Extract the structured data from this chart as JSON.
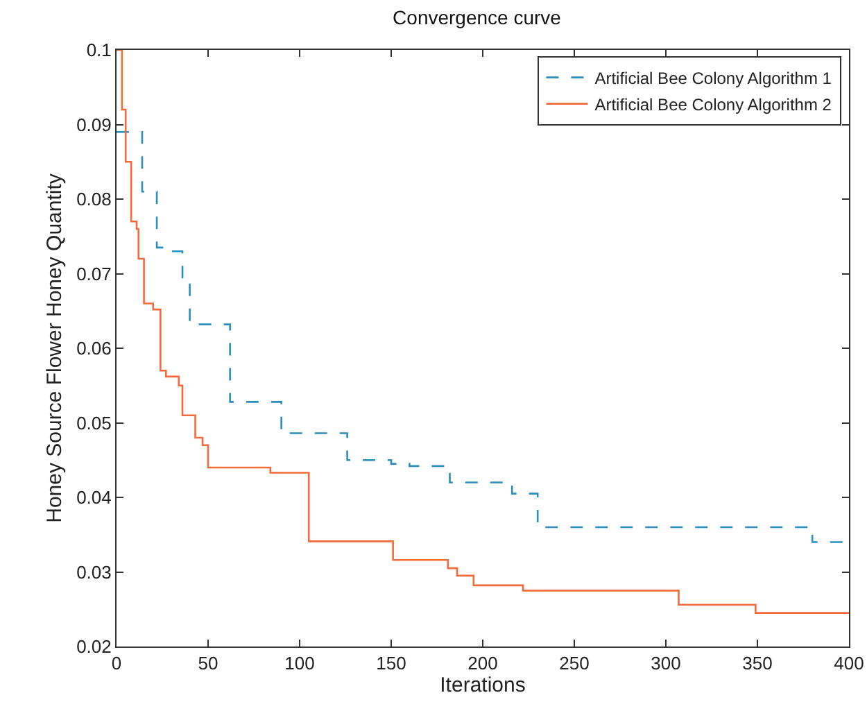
{
  "chart_data": {
    "type": "step",
    "title": "Convergence curve",
    "xlabel": "Iterations",
    "ylabel": "Honey Source Flower Honey Quantity",
    "xlim": [
      0,
      400
    ],
    "xticks": [
      0,
      50,
      100,
      150,
      200,
      250,
      300,
      350,
      400
    ],
    "ylim": [
      0.02,
      0.1
    ],
    "yticks": [
      0.02,
      0.03,
      0.04,
      0.05,
      0.06,
      0.07,
      0.08,
      0.09,
      0.1
    ],
    "grid": false,
    "legend": "top right",
    "series": [
      {
        "name": "Artificial Bee Colony Algorithm 1",
        "color": "#2a8fbd",
        "line_style": "dashed",
        "x": [
          0,
          14,
          22,
          30,
          36,
          40,
          62,
          90,
          126,
          150,
          160,
          182,
          216,
          230,
          380,
          400
        ],
        "values": [
          0.089,
          0.081,
          0.0735,
          0.073,
          0.069,
          0.0632,
          0.0528,
          0.0486,
          0.045,
          0.0445,
          0.0442,
          0.042,
          0.0405,
          0.036,
          0.034,
          0.034
        ]
      },
      {
        "name": "Artificial Bee Colony Algorithm 2",
        "color": "#f26b3c",
        "line_style": "solid",
        "x": [
          0,
          3,
          5,
          8,
          11,
          12,
          15,
          20,
          24,
          27,
          34,
          36,
          43,
          47,
          50,
          84,
          105,
          151,
          181,
          186,
          195,
          222,
          307,
          349,
          400
        ],
        "values": [
          0.1,
          0.092,
          0.085,
          0.077,
          0.076,
          0.072,
          0.066,
          0.0652,
          0.057,
          0.0562,
          0.055,
          0.051,
          0.048,
          0.047,
          0.044,
          0.0433,
          0.0341,
          0.0316,
          0.0305,
          0.0295,
          0.0282,
          0.0275,
          0.0256,
          0.0245,
          0.0245
        ]
      }
    ]
  }
}
